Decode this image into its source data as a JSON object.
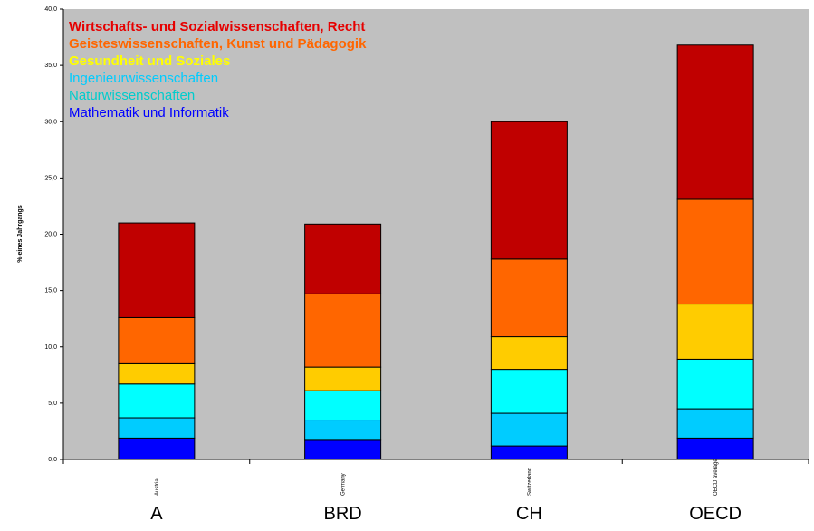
{
  "chart_data": {
    "type": "bar",
    "stacked": true,
    "ylabel": "% eines Jahrgangs",
    "ylim": [
      0,
      40
    ],
    "yticks": [
      "0,0",
      "5,0",
      "10,0",
      "15,0",
      "20,0",
      "25,0",
      "30,0",
      "35,0",
      "40,0"
    ],
    "grid": false,
    "plot_background": "#c0c0c0",
    "legend_placement": "top-left",
    "categories": [
      "Austria",
      "Germany",
      "Switzerland",
      "OECD average"
    ],
    "category_labels": [
      "A",
      "BRD",
      "CH",
      "OECD"
    ],
    "series": [
      {
        "name": "Mathematik und Informatik",
        "color": "#0000ff",
        "values": [
          1.9,
          1.7,
          1.2,
          1.9
        ]
      },
      {
        "name": "Naturwissenschaften",
        "color": "#00ccff",
        "values": [
          1.8,
          1.8,
          2.9,
          2.6
        ]
      },
      {
        "name": "Ingenieurwissenschaften",
        "color": "#00ffff",
        "values": [
          3.0,
          2.6,
          3.9,
          4.4
        ]
      },
      {
        "name": "Gesundheit und Soziales",
        "color": "#ffcc00",
        "values": [
          1.8,
          2.1,
          2.9,
          4.9
        ]
      },
      {
        "name": "Geisteswissenschaften, Kunst und Pädagogik",
        "color": "#ff6600",
        "values": [
          4.1,
          6.5,
          6.9,
          9.3
        ]
      },
      {
        "name": "Wirtschafts- und Sozialwissenschaften, Recht",
        "color": "#c00000",
        "values": [
          8.4,
          6.2,
          12.2,
          13.7
        ]
      }
    ],
    "legend": [
      {
        "text": "Wirtschafts- und Sozialwissenschaften, Recht",
        "color": "#e60000"
      },
      {
        "text": "Geisteswissenschaften, Kunst und Pädagogik",
        "color": "#ff6600"
      },
      {
        "text": "Gesundheit und Soziales",
        "color": "#ffff00"
      },
      {
        "text": "Ingenieurwissenschaften",
        "color": "#00ccff"
      },
      {
        "text": "Naturwissenschaften",
        "color": "#00cccc"
      },
      {
        "text": "Mathematik und Informatik",
        "color": "#0000ff"
      }
    ]
  }
}
